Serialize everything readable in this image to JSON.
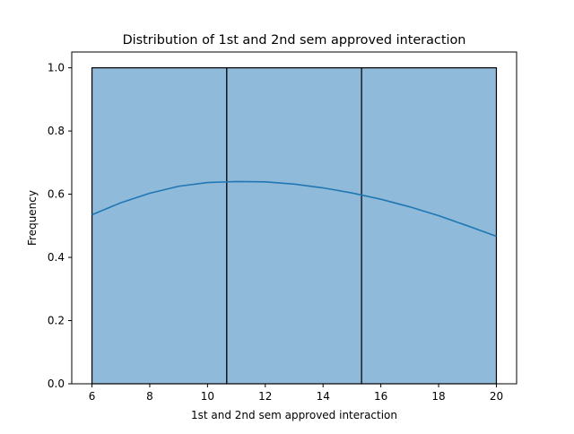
{
  "chart_data": {
    "type": "bar",
    "title": "Distribution of 1st and 2nd sem approved interaction",
    "xlabel": "1st and 2nd sem approved interaction",
    "ylabel": "Frequency",
    "bins": [
      {
        "start": 6.0,
        "end": 10.667,
        "value": 1.0
      },
      {
        "start": 10.667,
        "end": 15.333,
        "value": 1.0
      },
      {
        "start": 15.333,
        "end": 20.0,
        "value": 1.0
      }
    ],
    "kde": {
      "name": "",
      "x": [
        6,
        7,
        8,
        9,
        10,
        11,
        12,
        13,
        14,
        15,
        16,
        17,
        18,
        19,
        20
      ],
      "y": [
        0.535,
        0.573,
        0.603,
        0.625,
        0.637,
        0.64,
        0.639,
        0.632,
        0.62,
        0.604,
        0.584,
        0.56,
        0.532,
        0.5,
        0.467
      ]
    },
    "xlim": [
      5.3,
      20.7
    ],
    "ylim": [
      0,
      1.05
    ],
    "xticks": [
      6,
      8,
      10,
      12,
      14,
      16,
      18,
      20
    ],
    "yticks": [
      0.0,
      0.2,
      0.4,
      0.6,
      0.8,
      1.0
    ],
    "ytick_labels": [
      "0.0",
      "0.2",
      "0.4",
      "0.6",
      "0.8",
      "1.0"
    ],
    "grid": false,
    "colors": {
      "bar_fill": "#8fbad9",
      "bar_edge": "#000000",
      "kde_line": "#1f77b4",
      "axes": "#000000"
    }
  }
}
